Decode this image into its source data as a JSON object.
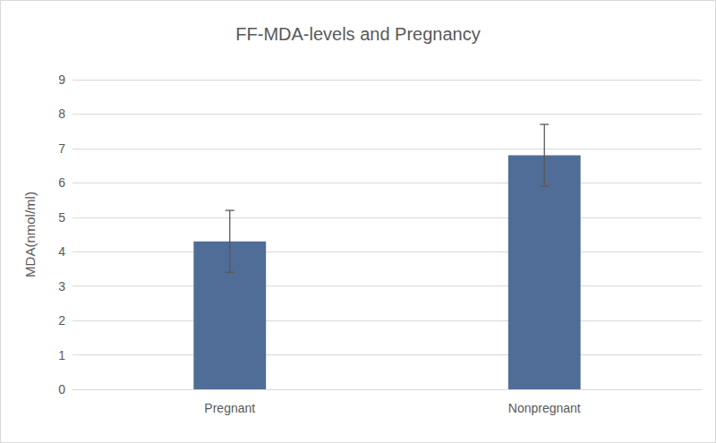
{
  "chart_data": {
    "type": "bar",
    "title": "FF-MDA-levels and Pregnancy",
    "y_label": "MDA(nmol/ml)",
    "categories": [
      "Pregnant",
      "Nonpregnant"
    ],
    "values": [
      4.3,
      6.8
    ],
    "errors": [
      0.9,
      0.9
    ],
    "color": "#4f6d96",
    "ylim": [
      0,
      9
    ],
    "yticks": [
      0,
      1,
      2,
      3,
      4,
      5,
      6,
      7,
      8,
      9
    ],
    "grid": true
  }
}
